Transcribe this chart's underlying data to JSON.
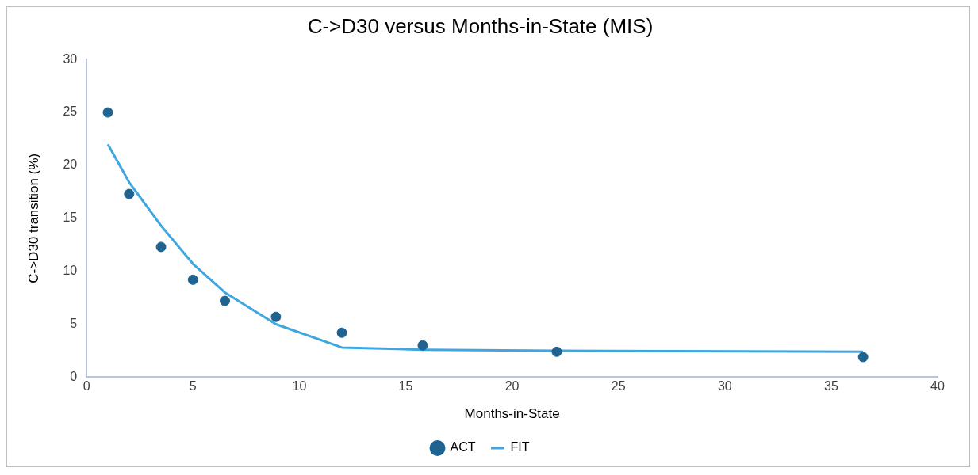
{
  "chart_data": {
    "type": "scatter",
    "title": "C->D30 versus Months-in-State (MIS)",
    "xlabel": "Months-in-State",
    "ylabel": "C->D30 transition (%)",
    "series": [
      {
        "name": "ACT",
        "color": "#1f6391",
        "marker": "circle",
        "x": [
          1,
          2,
          3.5,
          5,
          6.5,
          8.9,
          12,
          15.8,
          22.1,
          36.5
        ],
        "values": [
          25,
          17.3,
          12.3,
          9.2,
          7.2,
          5.7,
          4.2,
          3,
          2.4,
          1.9
        ]
      },
      {
        "name": "FIT",
        "type": "line",
        "color": "#3fa6e0",
        "marker": "none",
        "line_style": "solid",
        "x": [
          1,
          2,
          3.5,
          5,
          6.5,
          8.9,
          12,
          15.8,
          22.1,
          36.5
        ],
        "values": [
          22,
          18.4,
          14.3,
          10.7,
          8,
          5,
          2.8,
          2.6,
          2.5,
          2.4
        ]
      }
    ],
    "xlim": [
      0,
      40
    ],
    "xticks": [
      0,
      5,
      10,
      15,
      20,
      25,
      30,
      35,
      40
    ],
    "ylim": [
      0,
      30
    ],
    "yticks": [
      0,
      5,
      10,
      15,
      20,
      25,
      30
    ],
    "grid": false,
    "legend": "bottom"
  }
}
